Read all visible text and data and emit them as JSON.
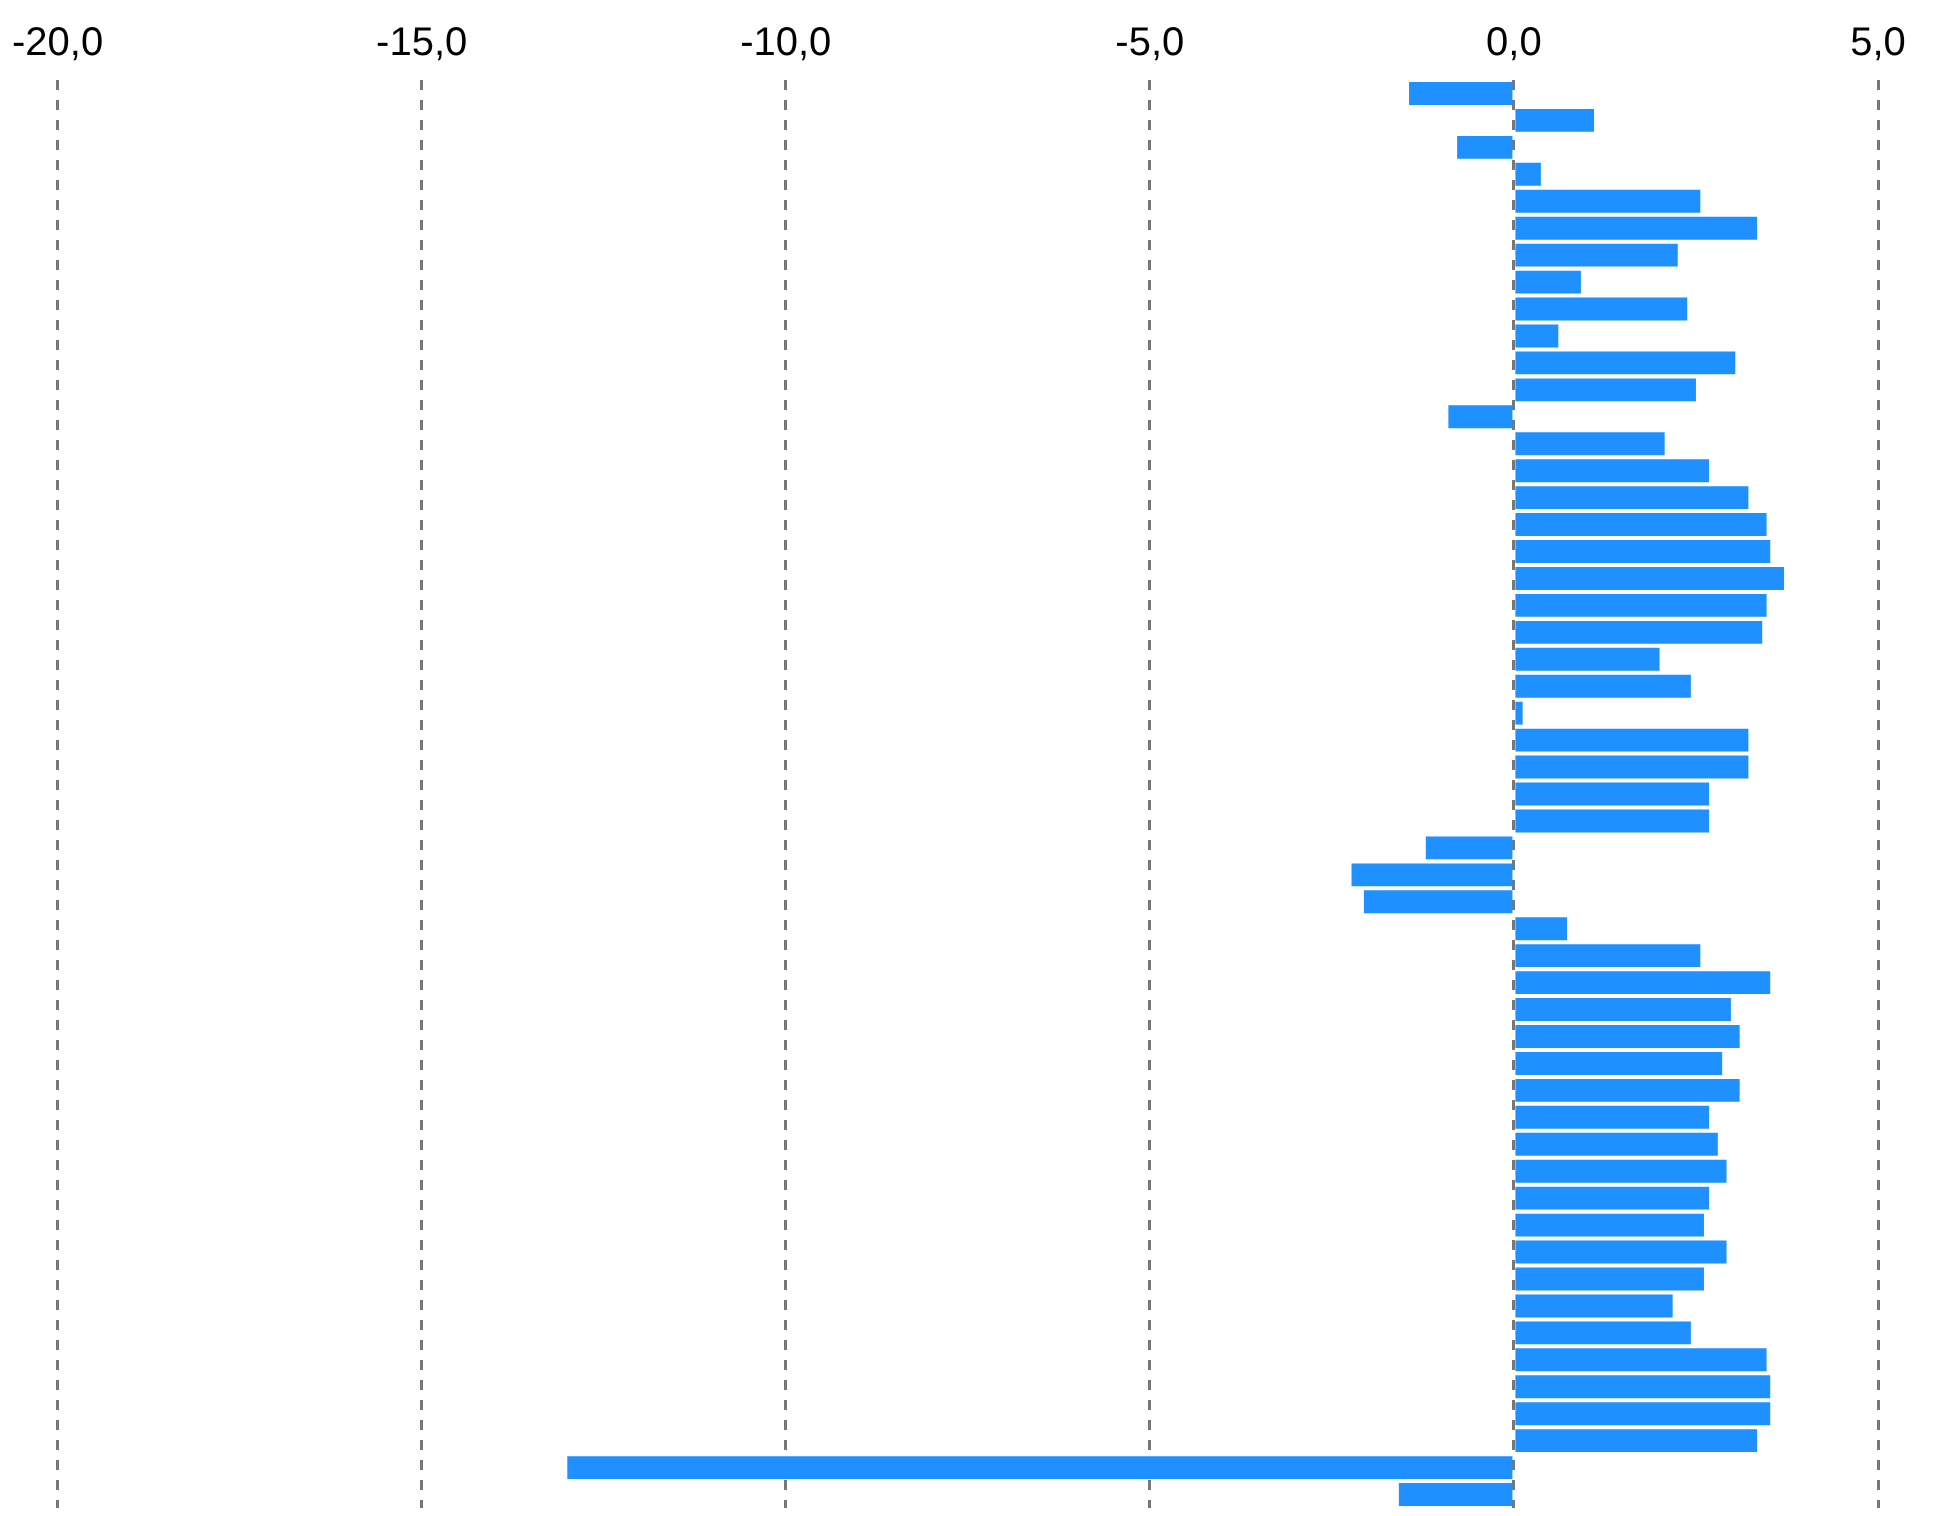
{
  "chart_data": {
    "type": "bar",
    "orientation": "horizontal",
    "categories": [
      null,
      null,
      null,
      null,
      null,
      null,
      null,
      null,
      null,
      null,
      null,
      null,
      null,
      null,
      null,
      null,
      null,
      null,
      null,
      null,
      null,
      null,
      null,
      null,
      null,
      null,
      null,
      null,
      null,
      null,
      null,
      null,
      null,
      null,
      null,
      null,
      null,
      null,
      null,
      null,
      null,
      null,
      null,
      null,
      null,
      null,
      null,
      null,
      null,
      null,
      null,
      null,
      null
    ],
    "values": [
      -1.44,
      1.1,
      -0.78,
      0.37,
      2.56,
      3.34,
      2.25,
      0.92,
      2.38,
      0.61,
      3.04,
      2.5,
      -0.9,
      2.07,
      2.68,
      3.22,
      3.47,
      3.52,
      3.71,
      3.47,
      3.41,
      2.0,
      2.43,
      0.12,
      3.22,
      3.22,
      2.68,
      2.68,
      -1.21,
      -2.23,
      -2.06,
      0.73,
      2.56,
      3.52,
      2.98,
      3.1,
      2.86,
      3.1,
      2.68,
      2.8,
      2.92,
      2.68,
      2.61,
      2.92,
      2.61,
      2.18,
      2.43,
      3.47,
      3.52,
      3.52,
      3.34,
      -13.0,
      -1.58
    ],
    "color": "#1e90ff",
    "xlim": [
      -20,
      5
    ],
    "xticks": [
      {
        "value": -20,
        "label": "-20,0"
      },
      {
        "value": -15,
        "label": "-15,0"
      },
      {
        "value": -10,
        "label": "-10,0"
      },
      {
        "value": -5,
        "label": "-5,0"
      },
      {
        "value": 0,
        "label": "0,0"
      },
      {
        "value": 5,
        "label": "5,0"
      }
    ],
    "grid": "x",
    "tick_labels": "x"
  }
}
